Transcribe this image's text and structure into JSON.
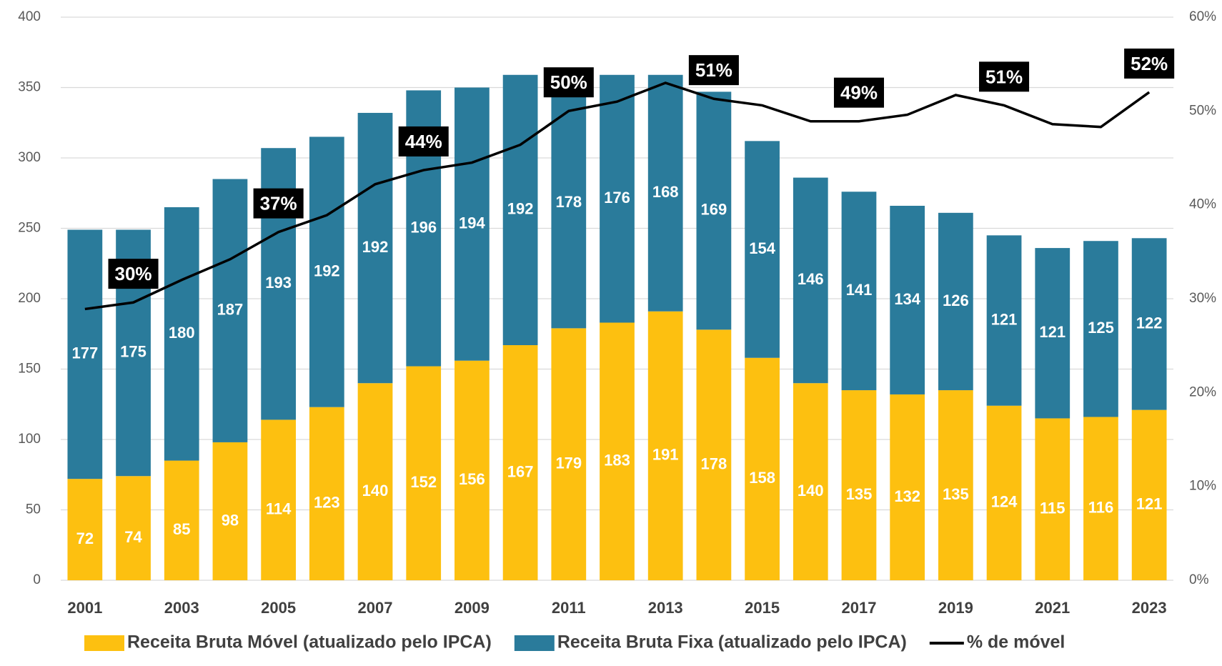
{
  "chart_data": {
    "type": "bar",
    "categories": [
      "2001",
      null,
      "2003",
      null,
      "2005",
      null,
      "2007",
      null,
      "2009",
      null,
      "2011",
      null,
      "2013",
      null,
      "2015",
      null,
      "2017",
      null,
      "2019",
      null,
      "2021",
      null,
      "2023"
    ],
    "stacked": true,
    "series": [
      {
        "name": "Receita Bruta Móvel (atualizado pelo IPCA)",
        "color": "#fdc010",
        "values": [
          72,
          74,
          85,
          98,
          114,
          123,
          140,
          152,
          156,
          167,
          179,
          183,
          191,
          178,
          158,
          140,
          135,
          132,
          135,
          124,
          115,
          116,
          121
        ]
      },
      {
        "name": "Receita Bruta Fixa (atualizado pelo IPCA)",
        "color": "#2a7b9b",
        "values": [
          177,
          175,
          180,
          187,
          193,
          192,
          192,
          196,
          194,
          192,
          178,
          176,
          168,
          169,
          154,
          146,
          141,
          134,
          126,
          121,
          121,
          125,
          122
        ]
      },
      {
        "name": "% de móvel",
        "color": "#000000",
        "type": "line",
        "axis": "y2",
        "values": [
          28.9,
          29.6,
          32.0,
          34.2,
          37.1,
          38.9,
          42.2,
          43.7,
          44.5,
          46.4,
          50.0,
          51.0,
          53.0,
          51.3,
          50.6,
          48.9,
          48.9,
          49.6,
          51.7,
          50.6,
          48.6,
          48.3,
          52.0
        ],
        "value_labels": [
          null,
          "30%",
          null,
          null,
          "37%",
          null,
          null,
          "44%",
          null,
          null,
          "50%",
          null,
          null,
          "51%",
          null,
          null,
          "49%",
          null,
          null,
          "51%",
          null,
          null,
          "52%"
        ]
      }
    ],
    "ylim": [
      0,
      400
    ],
    "yticks": [
      0,
      50,
      100,
      150,
      200,
      250,
      300,
      350,
      400
    ],
    "y2lim": [
      0,
      60
    ],
    "y2ticks": [
      {
        "value": 0,
        "label": "0%"
      },
      {
        "value": 10,
        "label": "10%"
      },
      {
        "value": 20,
        "label": "20%"
      },
      {
        "value": 30,
        "label": "30%"
      },
      {
        "value": 40,
        "label": "40%"
      },
      {
        "value": 50,
        "label": "50%"
      },
      {
        "value": 60,
        "label": "60%"
      }
    ],
    "grid": true,
    "legend": "bottom"
  }
}
